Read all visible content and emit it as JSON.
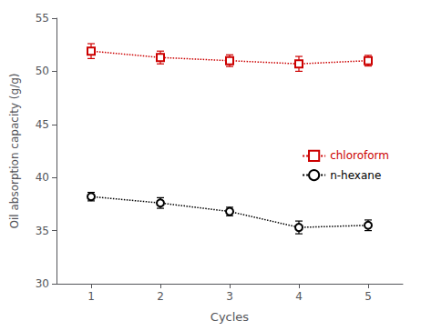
{
  "chart_data": {
    "type": "line",
    "xlabel": "Cycles",
    "ylabel": "Oil absorption capacity (g/g)",
    "x": [
      1,
      2,
      3,
      4,
      5
    ],
    "xlim": [
      0.5,
      5.5
    ],
    "xticks": [
      1,
      2,
      3,
      4,
      5
    ],
    "ylim": [
      30,
      55
    ],
    "yticks": [
      30,
      35,
      40,
      45,
      50,
      55
    ],
    "grid": false,
    "legend": "right",
    "series": [
      {
        "name": "chloroform",
        "color": "#cc0000",
        "marker": "square",
        "line_style": "dotted",
        "values": [
          51.9,
          51.3,
          51.0,
          50.7,
          51.0
        ],
        "yerr": [
          0.7,
          0.6,
          0.55,
          0.7,
          0.5
        ]
      },
      {
        "name": "n-hexane",
        "color": "#000000",
        "marker": "circle",
        "line_style": "dotted",
        "values": [
          38.2,
          37.6,
          36.8,
          35.3,
          35.5
        ],
        "yerr": [
          0.4,
          0.5,
          0.4,
          0.6,
          0.5
        ]
      }
    ]
  }
}
